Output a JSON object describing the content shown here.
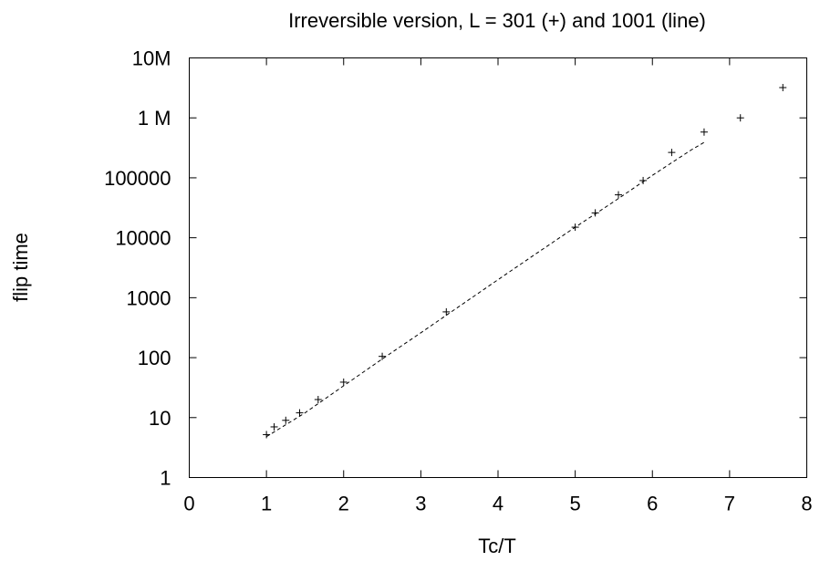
{
  "chart_data": {
    "type": "scatter",
    "title": "Irreversible version, L = 301 (+) and 1001 (line)",
    "xlabel": "Tc/T",
    "ylabel": "flip time",
    "xlim": [
      0,
      8
    ],
    "ylim": [
      1,
      10000000
    ],
    "yscale": "log",
    "grid": false,
    "x_ticks": [
      {
        "value": 0,
        "label": "0"
      },
      {
        "value": 1,
        "label": "1"
      },
      {
        "value": 2,
        "label": "2"
      },
      {
        "value": 3,
        "label": "3"
      },
      {
        "value": 4,
        "label": "4"
      },
      {
        "value": 5,
        "label": "5"
      },
      {
        "value": 6,
        "label": "6"
      },
      {
        "value": 7,
        "label": "7"
      },
      {
        "value": 8,
        "label": "8"
      }
    ],
    "y_ticks": [
      {
        "value": 1,
        "label": "1"
      },
      {
        "value": 10,
        "label": "10"
      },
      {
        "value": 100,
        "label": "100"
      },
      {
        "value": 1000,
        "label": "1000"
      },
      {
        "value": 10000,
        "label": "10000"
      },
      {
        "value": 100000,
        "label": "100000"
      },
      {
        "value": 1000000,
        "label": "1 M"
      },
      {
        "value": 10000000,
        "label": "10M"
      }
    ],
    "series": [
      {
        "marker": "+",
        "points": [
          [
            1.0,
            5.2
          ],
          [
            1.1,
            7.0
          ],
          [
            1.25,
            9.0
          ],
          [
            1.43,
            12.0
          ],
          [
            1.67,
            20.0
          ],
          [
            2.0,
            39.0
          ],
          [
            2.5,
            105.0
          ],
          [
            3.33,
            580.0
          ],
          [
            5.0,
            15000.0
          ],
          [
            5.26,
            26000.0
          ],
          [
            5.56,
            52000.0
          ],
          [
            5.88,
            90000.0
          ],
          [
            6.25,
            265000.0
          ],
          [
            6.67,
            580000.0
          ],
          [
            7.14,
            1000000.0
          ],
          [
            7.69,
            3200000.0
          ]
        ]
      },
      {
        "line": "dashed",
        "points": [
          [
            1.0,
            4.8
          ],
          [
            1.5,
            12.0
          ],
          [
            2.0,
            34.0
          ],
          [
            2.5,
            95.0
          ],
          [
            3.0,
            260.0
          ],
          [
            3.5,
            720.0
          ],
          [
            4.0,
            2000.0
          ],
          [
            4.5,
            5500.0
          ],
          [
            5.0,
            15000.0
          ],
          [
            5.5,
            40000.0
          ],
          [
            6.0,
            110000.0
          ],
          [
            6.5,
            290000.0
          ],
          [
            6.67,
            390000.0
          ]
        ]
      }
    ]
  }
}
